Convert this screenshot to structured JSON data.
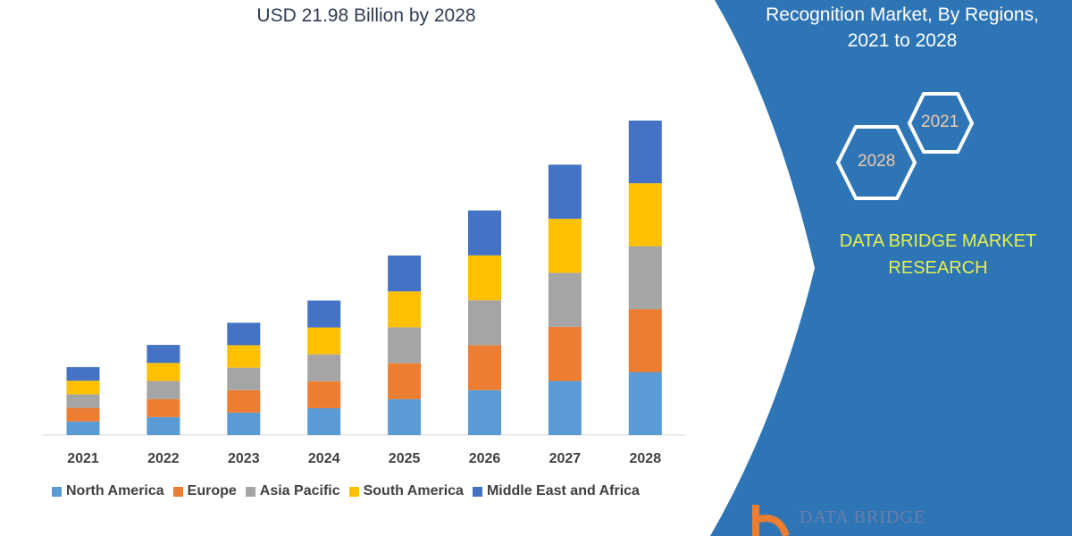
{
  "title": "USD 21.98 Billion by 2028",
  "side_panel": {
    "title_line1": "Recognition Market, By Regions,",
    "title_line2": "2021 to 2028",
    "hex_2021": "2021",
    "hex_2028": "2028",
    "brand_line1": "DATA BRIDGE MARKET",
    "brand_line2": "RESEARCH",
    "logo_text": "DATA BRIDGE",
    "panel_color": "#2e75b6"
  },
  "chart_data": {
    "type": "bar",
    "stacked": true,
    "categories": [
      "2021",
      "2022",
      "2023",
      "2024",
      "2025",
      "2026",
      "2027",
      "2028"
    ],
    "series": [
      {
        "name": "North America",
        "color": "#5b9bd5",
        "values": [
          0.95,
          1.26,
          1.57,
          1.88,
          2.51,
          3.14,
          3.78,
          4.4
        ]
      },
      {
        "name": "Europe",
        "color": "#ed7d31",
        "values": [
          0.95,
          1.26,
          1.57,
          1.88,
          2.51,
          3.14,
          3.78,
          4.4
        ]
      },
      {
        "name": "Asia Pacific",
        "color": "#a5a5a5",
        "values": [
          0.95,
          1.26,
          1.57,
          1.88,
          2.51,
          3.14,
          3.78,
          4.4
        ]
      },
      {
        "name": "South America",
        "color": "#ffc000",
        "values": [
          0.95,
          1.26,
          1.57,
          1.88,
          2.51,
          3.14,
          3.78,
          4.4
        ]
      },
      {
        "name": "Middle East and Africa",
        "color": "#4472c4",
        "values": [
          0.95,
          1.26,
          1.57,
          1.88,
          2.51,
          3.14,
          3.78,
          4.38
        ]
      }
    ],
    "ylim": [
      0,
      22
    ],
    "grid": false,
    "legend_position": "bottom"
  }
}
